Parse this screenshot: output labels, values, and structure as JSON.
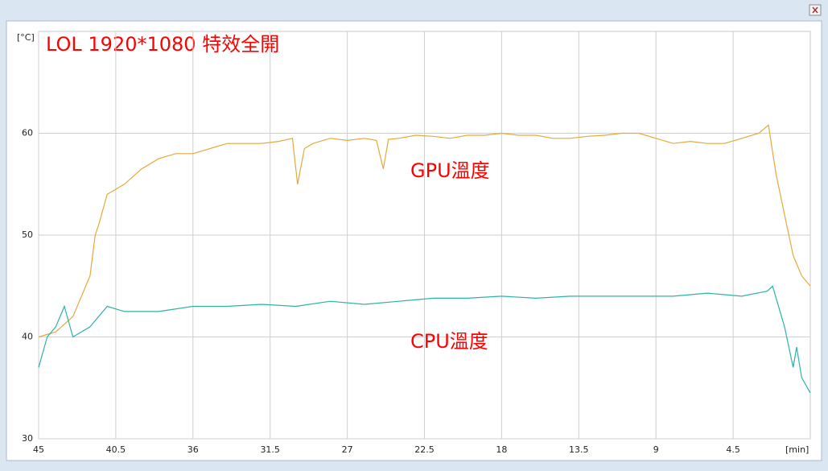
{
  "chart_data": {
    "type": "line",
    "title": "LOL 1920*1080 特效全開",
    "ylabel": "[°C]",
    "xlabel": "[min]",
    "xlim": [
      45,
      0
    ],
    "xticks": [
      45,
      40.5,
      36,
      31.5,
      27,
      22.5,
      18,
      13.5,
      9,
      4.5
    ],
    "ylim": [
      30,
      70
    ],
    "yticks": [
      30,
      40,
      50,
      60
    ],
    "grid": true,
    "series": [
      {
        "name": "GPU溫度",
        "color": "#e5a93b",
        "x": [
          45,
          44,
          43,
          42.5,
          42,
          41.7,
          41.5,
          41,
          40,
          39,
          38,
          37,
          36,
          35,
          34,
          33,
          32,
          31,
          30.2,
          29.9,
          29.5,
          29,
          28,
          27,
          26,
          25.3,
          24.9,
          24.6,
          24,
          23,
          22,
          21,
          20,
          19,
          18,
          17,
          16,
          15,
          14,
          13,
          12,
          11,
          10,
          9,
          8,
          7,
          6,
          5,
          4,
          3,
          2.44,
          2,
          1.5,
          1,
          0.5,
          0
        ],
        "values": [
          40,
          40.5,
          42,
          44,
          46,
          50,
          51,
          54,
          55,
          56.5,
          57.5,
          58,
          58,
          58.5,
          59,
          59,
          59,
          59.2,
          59.5,
          55,
          58.5,
          59,
          59.5,
          59.3,
          59.5,
          59.3,
          56.5,
          59.4,
          59.5,
          59.8,
          59.7,
          59.5,
          59.8,
          59.8,
          60,
          59.8,
          59.8,
          59.5,
          59.5,
          59.7,
          59.8,
          60,
          60,
          59.5,
          59,
          59.2,
          59,
          59,
          59.5,
          60,
          60.8,
          56,
          52,
          48,
          46,
          45
        ]
      },
      {
        "name": "CPU溫度",
        "color": "#2db3a6",
        "x": [
          45,
          44.5,
          44,
          43.5,
          43,
          42,
          41,
          40,
          38,
          36,
          34,
          32,
          30,
          28,
          26,
          24,
          22,
          20,
          18,
          16,
          14,
          12,
          10,
          8,
          6,
          4,
          2.5,
          2.2,
          1.5,
          1,
          0.8,
          0.5,
          0
        ],
        "values": [
          37,
          40,
          41,
          43,
          40,
          41,
          43,
          42.5,
          42.5,
          43,
          43,
          43.2,
          43,
          43.5,
          43.2,
          43.5,
          43.8,
          43.8,
          44,
          43.8,
          44,
          44,
          44,
          44,
          44.3,
          44,
          44.5,
          45,
          41,
          37,
          39,
          36,
          34.5
        ]
      }
    ]
  }
}
